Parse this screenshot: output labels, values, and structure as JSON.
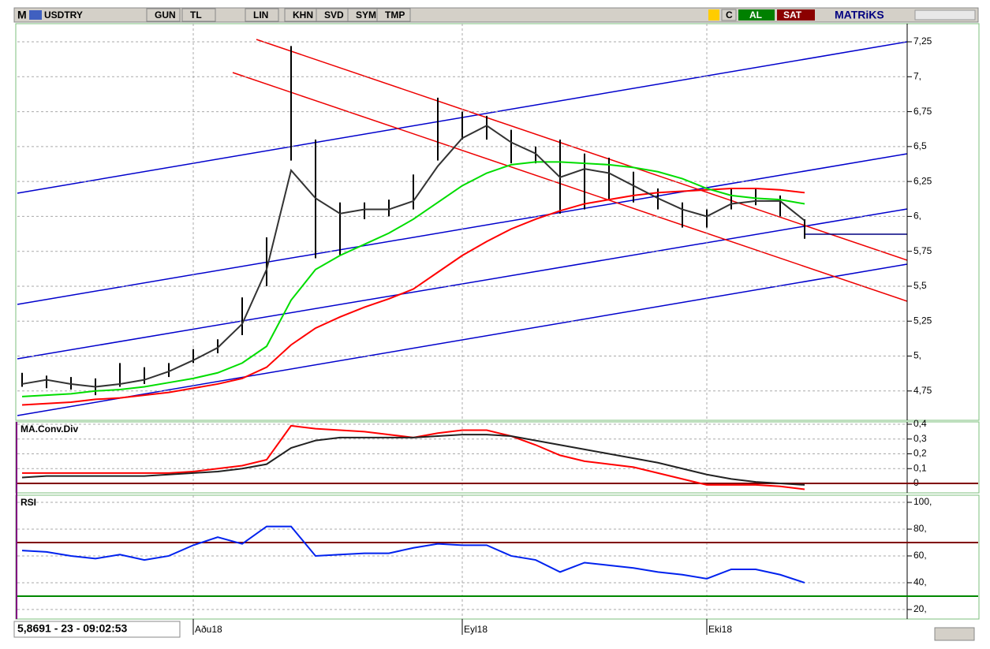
{
  "toolbar": {
    "logo": "M",
    "symbol": "USDTRY",
    "buttons": [
      "GUN",
      "TL",
      "LIN",
      "KHN",
      "SVD",
      "SYM",
      "TMP"
    ],
    "c": "C",
    "buy": "AL",
    "sell": "SAT",
    "brand": "MATRiKS"
  },
  "status": "5,8691 - 23 - 09:02:53",
  "chart_data": [
    {
      "type": "ohlc",
      "categories": [
        null,
        null,
        null,
        null,
        null,
        null,
        null,
        "Aðu18",
        null,
        null,
        null,
        null,
        null,
        null,
        null,
        null,
        null,
        null,
        "Eyl18",
        null,
        null,
        null,
        null,
        null,
        null,
        null,
        null,
        null,
        "Eki18",
        null,
        null,
        null,
        null
      ],
      "high": [
        4.88,
        4.86,
        4.85,
        4.84,
        4.95,
        4.92,
        4.95,
        5.05,
        5.12,
        5.42,
        5.85,
        7.22,
        6.55,
        6.1,
        6.1,
        6.12,
        6.3,
        6.85,
        6.75,
        6.72,
        6.62,
        6.5,
        6.55,
        6.45,
        6.42,
        6.32,
        6.2,
        6.1,
        6.05,
        6.2,
        6.2,
        6.15,
        5.98
      ],
      "low": [
        4.78,
        4.77,
        4.76,
        4.72,
        4.78,
        4.8,
        4.85,
        4.95,
        5.02,
        5.15,
        5.5,
        6.4,
        5.7,
        5.72,
        5.98,
        6.0,
        6.05,
        6.4,
        6.55,
        6.55,
        6.38,
        6.38,
        6.02,
        6.05,
        6.12,
        6.1,
        6.05,
        5.92,
        5.92,
        6.05,
        6.08,
        6.0,
        5.84
      ],
      "bar_color": "#000000",
      "series": [
        {
          "color": "#ff0000",
          "values": [
            4.65,
            4.66,
            4.67,
            4.69,
            4.7,
            4.72,
            4.74,
            4.77,
            4.8,
            4.84,
            4.92,
            5.08,
            5.2,
            5.28,
            5.35,
            5.41,
            5.48,
            5.6,
            5.72,
            5.82,
            5.91,
            5.98,
            6.04,
            6.09,
            6.12,
            6.15,
            6.17,
            6.18,
            6.19,
            6.2,
            6.2,
            6.19,
            6.17
          ]
        },
        {
          "color": "#00dd00",
          "values": [
            4.71,
            4.72,
            4.73,
            4.75,
            4.76,
            4.78,
            4.81,
            4.84,
            4.88,
            4.95,
            5.07,
            5.4,
            5.62,
            5.72,
            5.8,
            5.88,
            5.98,
            6.1,
            6.22,
            6.31,
            6.37,
            6.39,
            6.39,
            6.38,
            6.37,
            6.35,
            6.32,
            6.27,
            6.2,
            6.15,
            6.13,
            6.12,
            6.09
          ]
        },
        {
          "color": "#333333",
          "values": [
            4.8,
            4.83,
            4.8,
            4.78,
            4.8,
            4.83,
            4.89,
            4.97,
            5.06,
            5.23,
            5.62,
            6.33,
            6.13,
            6.02,
            6.05,
            6.05,
            6.11,
            6.36,
            6.56,
            6.65,
            6.53,
            6.45,
            6.28,
            6.34,
            6.31,
            6.22,
            6.13,
            6.05,
            6.0,
            6.09,
            6.11,
            6.11,
            5.97
          ]
        }
      ],
      "ylim": [
        4.54,
        7.38
      ],
      "yticks": [
        {
          "value": 4.75,
          "label": "4,75"
        },
        {
          "value": 5,
          "label": "5,"
        },
        {
          "value": 5.25,
          "label": "5,25"
        },
        {
          "value": 5.5,
          "label": "5,5"
        },
        {
          "value": 5.75,
          "label": "5,75"
        },
        {
          "value": 6,
          "label": "6,"
        },
        {
          "value": 6.25,
          "label": "6,25"
        },
        {
          "value": 6.5,
          "label": "6,5"
        },
        {
          "value": 6.75,
          "label": "6,75"
        },
        {
          "value": 7,
          "label": "7,"
        },
        {
          "value": 7.25,
          "label": "7,25"
        }
      ],
      "grid": true
    },
    {
      "type": "line",
      "title": "MA.Conv.Div",
      "series": [
        {
          "color": "#ff0000",
          "values": [
            0.07,
            0.07,
            0.07,
            0.07,
            0.07,
            0.07,
            0.07,
            0.08,
            0.1,
            0.12,
            0.16,
            0.39,
            0.37,
            0.36,
            0.35,
            0.33,
            0.31,
            0.34,
            0.36,
            0.36,
            0.32,
            0.26,
            0.19,
            0.15,
            0.13,
            0.11,
            0.07,
            0.03,
            -0.01,
            -0.01,
            -0.01,
            -0.02,
            -0.04
          ]
        },
        {
          "color": "#222222",
          "values": [
            0.04,
            0.05,
            0.05,
            0.05,
            0.05,
            0.05,
            0.06,
            0.07,
            0.08,
            0.1,
            0.13,
            0.24,
            0.29,
            0.31,
            0.31,
            0.31,
            0.31,
            0.32,
            0.33,
            0.33,
            0.32,
            0.29,
            0.26,
            0.23,
            0.2,
            0.17,
            0.14,
            0.1,
            0.06,
            0.03,
            0.01,
            0.0,
            -0.01
          ]
        }
      ],
      "reference_lines": [
        {
          "value": 0,
          "color": "#800000"
        }
      ],
      "ylim": [
        -0.064,
        0.416
      ],
      "yticks": [
        0,
        {
          "value": 0.1,
          "label": "0,1"
        },
        {
          "value": 0.2,
          "label": "0,2"
        },
        {
          "value": 0.3,
          "label": "0,3"
        },
        {
          "value": 0.4,
          "label": "0,4"
        }
      ],
      "grid": true
    },
    {
      "type": "line",
      "title": "RSI",
      "series": [
        {
          "color": "#0022ee",
          "values": [
            64,
            63,
            60,
            58,
            61,
            57,
            60,
            68,
            74,
            69,
            82,
            82,
            60,
            61,
            62,
            62,
            66,
            69,
            68,
            68,
            60,
            57,
            48,
            55,
            53,
            51,
            48,
            46,
            43,
            50,
            50,
            46,
            40
          ]
        }
      ],
      "reference_lines": [
        {
          "value": 70,
          "color": "#800000"
        },
        {
          "value": 30,
          "color": "#008800"
        }
      ],
      "ylim": [
        12.9,
        105.3
      ],
      "yticks": [
        {
          "value": 20,
          "label": "20,"
        },
        {
          "value": 40,
          "label": "40,"
        },
        {
          "value": 60,
          "label": "60,"
        },
        {
          "value": 80,
          "label": "80,"
        },
        {
          "value": 100,
          "label": "100,"
        }
      ],
      "grid": true
    }
  ]
}
